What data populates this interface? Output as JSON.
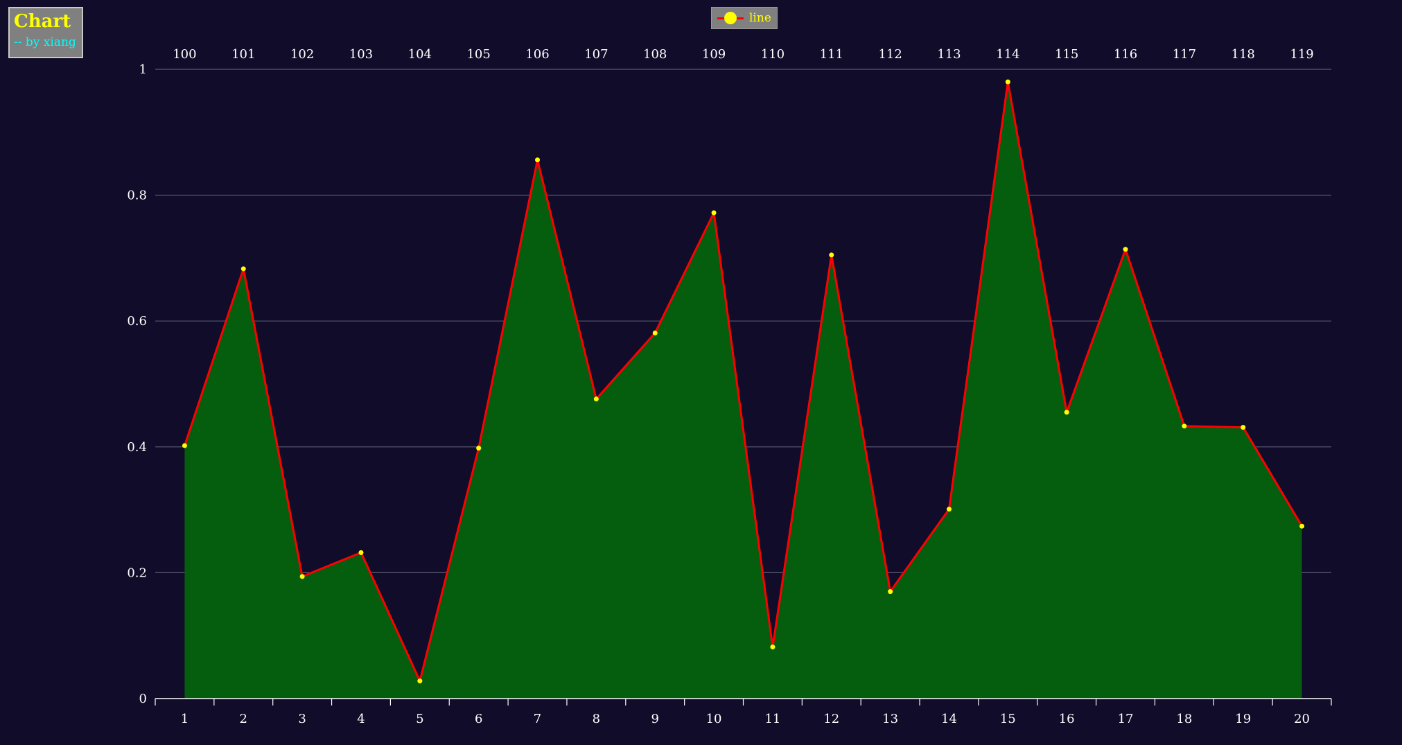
{
  "title": {
    "main": "Chart",
    "sub": "-- by xiang"
  },
  "legend": {
    "label": "line"
  },
  "colors": {
    "background": "#100c2a",
    "line": "#ff0000",
    "area": "#055e0e",
    "point": "#ffff00",
    "grid": "#5c5a72",
    "axis": "#ffffff"
  },
  "chart_data": {
    "type": "area",
    "categories": [
      "1",
      "2",
      "3",
      "4",
      "5",
      "6",
      "7",
      "8",
      "9",
      "10",
      "11",
      "12",
      "13",
      "14",
      "15",
      "16",
      "17",
      "18",
      "19",
      "20"
    ],
    "top_categories": [
      "100",
      "101",
      "102",
      "103",
      "104",
      "105",
      "106",
      "107",
      "108",
      "109",
      "110",
      "111",
      "112",
      "113",
      "114",
      "115",
      "116",
      "117",
      "118",
      "119"
    ],
    "series": [
      {
        "values": [
          0.402,
          0.683,
          0.194,
          0.232,
          0.028,
          0.398,
          0.856,
          0.476,
          0.581,
          0.772,
          0.082,
          0.705,
          0.17,
          0.301,
          0.98,
          0.455,
          0.714,
          0.433,
          0.431,
          0.274
        ]
      }
    ],
    "ylim": [
      0,
      1
    ],
    "yticks": [
      0,
      0.2,
      0.4,
      0.6,
      0.8,
      1
    ],
    "ytick_labels": [
      "0",
      "0.2",
      "0.4",
      "0.6",
      "0.8",
      "1"
    ],
    "grid": true,
    "legend_position": "top-center"
  }
}
